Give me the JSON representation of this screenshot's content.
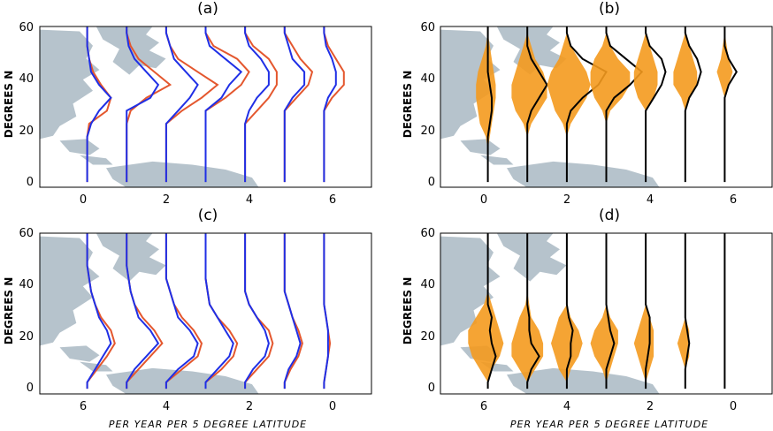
{
  "figure": {
    "xlabel": "PER YEAR PER 5 DEGREE LATITUDE",
    "ylabel": "DEGREES N"
  },
  "colors": {
    "land": "#b6c3cc",
    "blue_series": "#1f2fe6",
    "red_series": "#e4572e",
    "orange_fill": "#f49a1e",
    "black_line": "#000000"
  },
  "chart_data": [
    {
      "panel": "a",
      "title": "(a)",
      "type": "line",
      "x_ticks": [
        0,
        2,
        4,
        6
      ],
      "y_ticks": [
        0,
        20,
        40,
        60
      ],
      "xlim": [
        -1.2,
        7.2
      ],
      "ylim": [
        -2,
        60
      ],
      "lat": [
        2.5,
        7.5,
        12.5,
        17.5,
        22.5,
        27.5,
        32.5,
        37.5,
        42.5,
        47.5,
        52.5,
        57.5
      ],
      "profiles": [
        {
          "base": 0,
          "blue": [
            0,
            0,
            0,
            0,
            0.1,
            0.3,
            0.6,
            0.3,
            0.1,
            0.05,
            0,
            0
          ],
          "red": [
            0,
            0,
            0,
            0,
            0.05,
            0.5,
            0.6,
            0.35,
            0.15,
            0.05,
            0,
            0
          ]
        },
        {
          "base": 1,
          "blue": [
            0,
            0,
            0,
            0,
            0,
            0,
            0.6,
            0.8,
            0.5,
            0.2,
            0.05,
            0
          ],
          "red": [
            0,
            0,
            0,
            0,
            0,
            0.1,
            0.5,
            1.1,
            0.7,
            0.3,
            0.1,
            0
          ]
        },
        {
          "base": 2,
          "blue": [
            0,
            0,
            0,
            0,
            0,
            0.3,
            0.6,
            0.8,
            0.5,
            0.2,
            0.1,
            0
          ],
          "red": [
            0,
            0,
            0,
            0,
            0,
            0.4,
            0.9,
            1.3,
            0.8,
            0.3,
            0.1,
            0
          ]
        },
        {
          "base": 3,
          "blue": [
            0,
            0,
            0,
            0,
            0,
            0,
            0.4,
            0.6,
            0.9,
            0.5,
            0.1,
            0
          ],
          "red": [
            0,
            0,
            0,
            0,
            0,
            0,
            0.5,
            0.9,
            1.1,
            0.8,
            0.2,
            0
          ]
        },
        {
          "base": 4,
          "blue": [
            0,
            0,
            0,
            0,
            0,
            0.1,
            0.3,
            0.6,
            0.6,
            0.4,
            0.1,
            0
          ],
          "red": [
            0,
            0,
            0,
            0,
            0,
            0.3,
            0.6,
            0.8,
            0.8,
            0.6,
            0.2,
            0
          ]
        },
        {
          "base": 5,
          "blue": [
            0,
            0,
            0,
            0,
            0,
            0,
            0.2,
            0.5,
            0.5,
            0.2,
            0.1,
            0
          ],
          "red": [
            0,
            0,
            0,
            0,
            0,
            0,
            0.3,
            0.6,
            0.7,
            0.4,
            0.2,
            0
          ]
        },
        {
          "base": 6,
          "blue": [
            0,
            0,
            0,
            0,
            0,
            0,
            0.1,
            0.3,
            0.3,
            0.2,
            0.05,
            0
          ],
          "red": [
            0,
            0,
            0,
            0,
            0,
            0,
            0.2,
            0.5,
            0.5,
            0.3,
            0.1,
            0
          ]
        }
      ]
    },
    {
      "panel": "b",
      "title": "(b)",
      "type": "area",
      "x_ticks": [
        0,
        2,
        4,
        6
      ],
      "y_ticks": [
        0,
        20,
        40,
        60
      ],
      "xlim": [
        -1.2,
        7.2
      ],
      "ylim": [
        -2,
        60
      ],
      "lat": [
        2.5,
        7.5,
        12.5,
        17.5,
        22.5,
        27.5,
        32.5,
        37.5,
        42.5,
        47.5,
        52.5,
        57.5
      ],
      "profiles": [
        {
          "base": 0,
          "left": [
            0,
            0,
            0,
            0.05,
            0.2,
            0.25,
            0.3,
            0.3,
            0.25,
            0.15,
            0.05,
            0
          ],
          "right": [
            0,
            0,
            0,
            0.05,
            0.1,
            0.15,
            0.2,
            0.2,
            0.15,
            0.1,
            0.05,
            0
          ],
          "line": [
            0,
            0,
            0,
            0,
            0.05,
            0.1,
            0.1,
            0.05,
            0,
            0,
            0,
            0
          ]
        },
        {
          "base": 1,
          "left": [
            0,
            0,
            0,
            0,
            0.1,
            0.3,
            0.4,
            0.4,
            0.3,
            0.2,
            0.1,
            0
          ],
          "right": [
            0,
            0,
            0,
            0,
            0.1,
            0.3,
            0.5,
            0.5,
            0.4,
            0.2,
            0.1,
            0
          ],
          "line": [
            0,
            0,
            0,
            0,
            0,
            0.1,
            0.3,
            0.5,
            0.3,
            0.1,
            0,
            0
          ]
        },
        {
          "base": 2,
          "left": [
            0,
            0,
            0,
            0,
            0.1,
            0.3,
            0.4,
            0.5,
            0.4,
            0.2,
            0.1,
            0
          ],
          "right": [
            0,
            0,
            0,
            0,
            0.1,
            0.3,
            0.5,
            0.6,
            0.5,
            0.3,
            0.1,
            0
          ],
          "line": [
            0,
            0,
            0,
            0,
            0,
            0.1,
            0.4,
            0.8,
            1.0,
            0.4,
            0.1,
            0
          ]
        },
        {
          "base": 3,
          "left": [
            0,
            0,
            0,
            0,
            0,
            0.1,
            0.3,
            0.4,
            0.4,
            0.3,
            0.1,
            0
          ],
          "right": [
            0,
            0,
            0,
            0,
            0,
            0.1,
            0.4,
            0.6,
            0.6,
            0.3,
            0.1,
            0
          ],
          "line": [
            0,
            0,
            0,
            0,
            0,
            0,
            0.2,
            0.6,
            0.9,
            0.5,
            0.1,
            0
          ]
        },
        {
          "base": 4,
          "left": [
            0,
            0,
            0,
            0,
            0,
            0,
            0.2,
            0.3,
            0.3,
            0.2,
            0.1,
            0
          ],
          "right": [
            0,
            0,
            0,
            0,
            0,
            0,
            0.2,
            0.3,
            0.3,
            0.2,
            0.1,
            0
          ],
          "line": [
            0,
            0,
            0,
            0,
            0,
            0,
            0.2,
            0.4,
            0.5,
            0.4,
            0.1,
            0
          ]
        },
        {
          "base": 5,
          "left": [
            0,
            0,
            0,
            0,
            0,
            0,
            0.1,
            0.3,
            0.3,
            0.2,
            0.1,
            0
          ],
          "right": [
            0,
            0,
            0,
            0,
            0,
            0,
            0.1,
            0.3,
            0.3,
            0.2,
            0.1,
            0
          ],
          "line": [
            0,
            0,
            0,
            0,
            0,
            0,
            0.1,
            0.3,
            0.4,
            0.3,
            0.1,
            0
          ]
        },
        {
          "base": 6,
          "left": [
            0,
            0,
            0,
            0,
            0,
            0,
            0,
            0.1,
            0.2,
            0.1,
            0.05,
            0
          ],
          "right": [
            0,
            0,
            0,
            0,
            0,
            0,
            0,
            0.1,
            0.2,
            0.1,
            0.05,
            0
          ],
          "line": [
            0,
            0,
            0,
            0,
            0,
            0,
            0,
            0.1,
            0.3,
            0.1,
            0,
            0
          ]
        }
      ]
    },
    {
      "panel": "c",
      "title": "(c)",
      "type": "line",
      "x_ticks": [
        6,
        4,
        2,
        0
      ],
      "x_tick_pos": [
        0,
        2,
        4,
        6
      ],
      "y_ticks": [
        0,
        20,
        40,
        60
      ],
      "xlim": [
        -1.2,
        7.2
      ],
      "ylim": [
        -2,
        60
      ],
      "lat": [
        2.5,
        7.5,
        12.5,
        17.5,
        22.5,
        27.5,
        32.5,
        37.5,
        42.5,
        47.5,
        52.5,
        57.5
      ],
      "profiles": [
        {
          "base": 0,
          "blue": [
            0,
            0.2,
            0.4,
            0.6,
            0.5,
            0.3,
            0.2,
            0.1,
            0.05,
            0,
            0,
            0
          ],
          "red": [
            0,
            0.25,
            0.5,
            0.7,
            0.6,
            0.35,
            0.2,
            0.1,
            0.05,
            0,
            0,
            0
          ]
        },
        {
          "base": 1,
          "blue": [
            0,
            0.2,
            0.5,
            0.8,
            0.6,
            0.3,
            0.2,
            0.1,
            0.05,
            0,
            0,
            0
          ],
          "red": [
            0,
            0.3,
            0.6,
            0.9,
            0.7,
            0.4,
            0.2,
            0.1,
            0.05,
            0,
            0,
            0
          ]
        },
        {
          "base": 2,
          "blue": [
            0,
            0.3,
            0.7,
            0.8,
            0.6,
            0.3,
            0.2,
            0.1,
            0,
            0,
            0,
            0
          ],
          "red": [
            0,
            0.4,
            0.8,
            0.9,
            0.7,
            0.4,
            0.2,
            0.1,
            0,
            0,
            0,
            0
          ]
        },
        {
          "base": 3,
          "blue": [
            0,
            0.3,
            0.6,
            0.7,
            0.5,
            0.3,
            0.1,
            0.05,
            0,
            0,
            0,
            0
          ],
          "red": [
            0,
            0.4,
            0.7,
            0.8,
            0.6,
            0.3,
            0.1,
            0.05,
            0,
            0,
            0,
            0
          ]
        },
        {
          "base": 4,
          "blue": [
            0,
            0.2,
            0.5,
            0.6,
            0.5,
            0.3,
            0.1,
            0,
            0,
            0,
            0,
            0
          ],
          "red": [
            0,
            0.3,
            0.6,
            0.7,
            0.6,
            0.3,
            0.1,
            0,
            0,
            0,
            0,
            0
          ]
        },
        {
          "base": 5,
          "blue": [
            0,
            0.1,
            0.3,
            0.4,
            0.3,
            0.2,
            0.1,
            0,
            0,
            0,
            0,
            0
          ],
          "red": [
            0,
            0.15,
            0.35,
            0.45,
            0.35,
            0.2,
            0.1,
            0,
            0,
            0,
            0,
            0
          ]
        },
        {
          "base": 6,
          "blue": [
            0,
            0.05,
            0.1,
            0.1,
            0.1,
            0.05,
            0,
            0,
            0,
            0,
            0,
            0
          ],
          "red": [
            0,
            0.05,
            0.1,
            0.15,
            0.1,
            0.05,
            0,
            0,
            0,
            0,
            0,
            0
          ]
        }
      ]
    },
    {
      "panel": "d",
      "title": "(d)",
      "type": "area",
      "x_ticks": [
        6,
        4,
        2,
        0
      ],
      "x_tick_pos": [
        0,
        2,
        4,
        6
      ],
      "y_ticks": [
        0,
        20,
        40,
        60
      ],
      "xlim": [
        -1.2,
        7.2
      ],
      "ylim": [
        -2,
        60
      ],
      "lat": [
        2.5,
        7.5,
        12.5,
        17.5,
        22.5,
        27.5,
        32.5,
        37.5,
        42.5,
        47.5,
        52.5,
        57.5
      ],
      "profiles": [
        {
          "base": 0,
          "left": [
            0,
            0.2,
            0.4,
            0.5,
            0.5,
            0.3,
            0.1,
            0,
            0,
            0,
            0,
            0
          ],
          "right": [
            0,
            0.1,
            0.3,
            0.4,
            0.3,
            0.2,
            0.1,
            0,
            0,
            0,
            0,
            0
          ],
          "line": [
            0,
            0.1,
            0.2,
            0.1,
            0.05,
            0.1,
            0,
            0,
            0,
            0,
            0,
            0
          ]
        },
        {
          "base": 1,
          "left": [
            0,
            0.2,
            0.4,
            0.4,
            0.3,
            0.2,
            0.05,
            0,
            0,
            0,
            0,
            0
          ],
          "right": [
            0,
            0.2,
            0.4,
            0.4,
            0.3,
            0.1,
            0.05,
            0,
            0,
            0,
            0,
            0
          ],
          "line": [
            0,
            0.1,
            0.3,
            0.1,
            0.05,
            0.05,
            0,
            0,
            0,
            0,
            0,
            0
          ]
        },
        {
          "base": 2,
          "left": [
            0,
            0.2,
            0.3,
            0.4,
            0.3,
            0.2,
            0,
            0,
            0,
            0,
            0,
            0
          ],
          "right": [
            0,
            0.1,
            0.3,
            0.4,
            0.3,
            0.1,
            0,
            0,
            0,
            0,
            0,
            0
          ],
          "line": [
            0,
            0,
            0.1,
            0.1,
            0.15,
            0.05,
            0,
            0,
            0,
            0,
            0,
            0
          ]
        },
        {
          "base": 3,
          "left": [
            0,
            0.1,
            0.3,
            0.4,
            0.3,
            0.1,
            0,
            0,
            0,
            0,
            0,
            0
          ],
          "right": [
            0,
            0.1,
            0.2,
            0.3,
            0.3,
            0.1,
            0,
            0,
            0,
            0,
            0,
            0
          ],
          "line": [
            0,
            0,
            0.1,
            0.2,
            0.1,
            0.05,
            0,
            0,
            0,
            0,
            0,
            0
          ]
        },
        {
          "base": 4,
          "left": [
            0,
            0.1,
            0.2,
            0.3,
            0.2,
            0.1,
            0,
            0,
            0,
            0,
            0,
            0
          ],
          "right": [
            0,
            0.1,
            0.2,
            0.2,
            0.2,
            0.1,
            0,
            0,
            0,
            0,
            0,
            0
          ],
          "line": [
            0,
            0,
            0.05,
            0.1,
            0.1,
            0.1,
            0,
            0,
            0,
            0,
            0,
            0
          ]
        },
        {
          "base": 5,
          "left": [
            0,
            0,
            0.1,
            0.2,
            0.1,
            0,
            0,
            0,
            0,
            0,
            0,
            0
          ],
          "right": [
            0,
            0,
            0.1,
            0.1,
            0.1,
            0,
            0,
            0,
            0,
            0,
            0,
            0
          ],
          "line": [
            0,
            0,
            0.05,
            0.1,
            0.05,
            0,
            0,
            0,
            0,
            0,
            0,
            0
          ]
        },
        {
          "base": 6,
          "left": [
            0,
            0,
            0,
            0,
            0,
            0,
            0,
            0,
            0,
            0,
            0,
            0
          ],
          "right": [
            0,
            0,
            0,
            0,
            0,
            0,
            0,
            0,
            0,
            0,
            0,
            0
          ],
          "line": [
            0,
            0,
            0,
            0,
            0,
            0,
            0,
            0,
            0,
            0,
            0,
            0
          ]
        }
      ]
    }
  ]
}
